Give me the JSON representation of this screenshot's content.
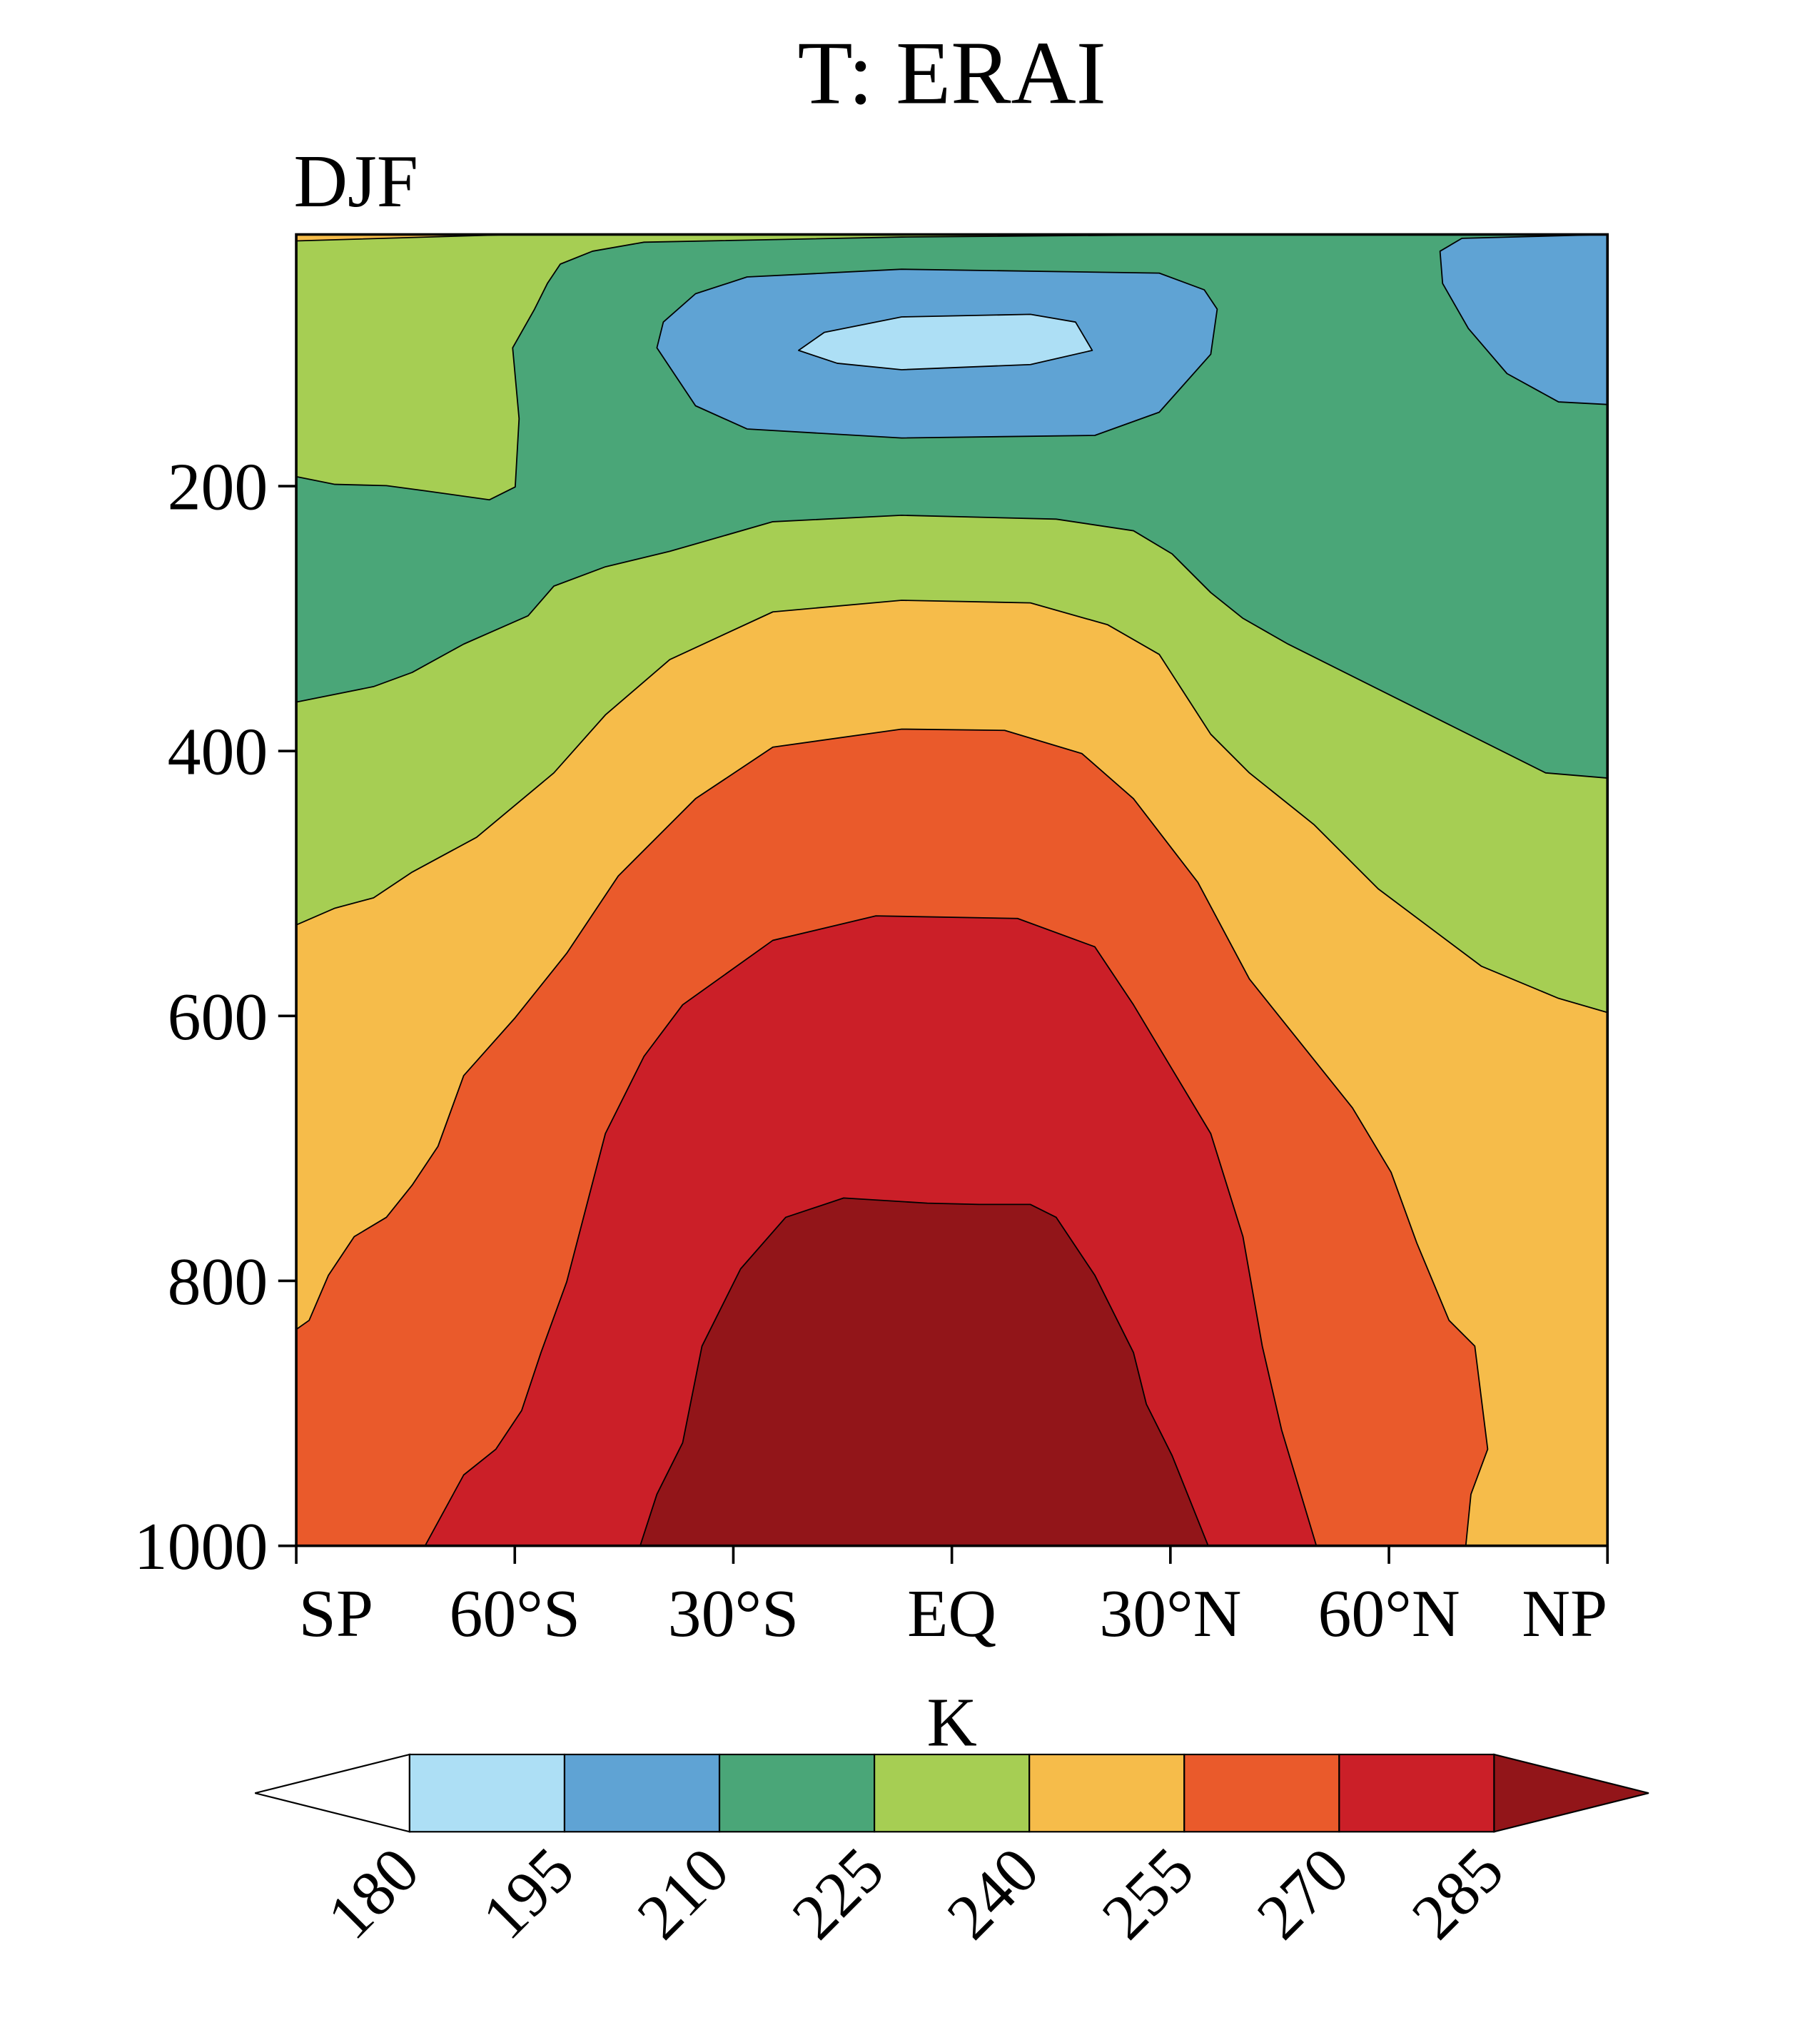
{
  "chart_data": {
    "type": "contour",
    "title": "T: ERAI",
    "subtitle": "DJF",
    "xlabel": "",
    "ylabel": "",
    "x_ticks": [
      "SP",
      "60°S",
      "30°S",
      "EQ",
      "30°N",
      "60°N",
      "NP"
    ],
    "x_tick_values": [
      -90,
      -60,
      -30,
      0,
      30,
      60,
      90
    ],
    "xlim": [
      -90,
      90
    ],
    "y_ticks": [
      "200",
      "400",
      "600",
      "800",
      "1000"
    ],
    "y_tick_values": [
      200,
      400,
      600,
      800,
      1000
    ],
    "ylim": [
      1000,
      10
    ],
    "colorbar": {
      "label": "K",
      "levels": [
        "180",
        "195",
        "210",
        "225",
        "240",
        "255",
        "270",
        "285"
      ],
      "colors": [
        "#ffffff",
        "#addff5",
        "#5fa3d4",
        "#4aa678",
        "#a6ce53",
        "#f6bc4a",
        "#ea5a2b",
        "#cb1f28",
        "#921519"
      ]
    }
  }
}
